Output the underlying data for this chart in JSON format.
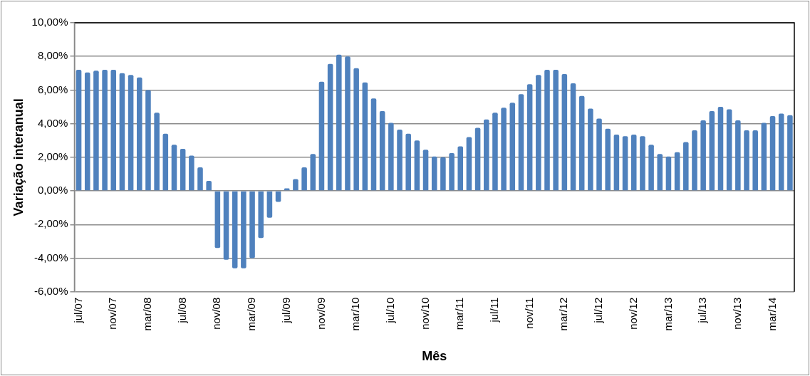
{
  "chart_data": {
    "type": "bar",
    "xlabel": "Mês",
    "ylabel": "Variação interanual",
    "categories": [
      "jul/07",
      null,
      null,
      null,
      "nov/07",
      null,
      null,
      null,
      "mar/08",
      null,
      null,
      null,
      "jul/08",
      null,
      null,
      null,
      "nov/08",
      null,
      null,
      null,
      "mar/09",
      null,
      null,
      null,
      "jul/09",
      null,
      null,
      null,
      "nov/09",
      null,
      null,
      null,
      "mar/10",
      null,
      null,
      null,
      "jul/10",
      null,
      null,
      null,
      "nov/10",
      null,
      null,
      null,
      "mar/11",
      null,
      null,
      null,
      "jul/11",
      null,
      null,
      null,
      "nov/11",
      null,
      null,
      null,
      "mar/12",
      null,
      null,
      null,
      "jul/12",
      null,
      null,
      null,
      "nov/12",
      null,
      null,
      null,
      "mar/13",
      null,
      null,
      null,
      "jul/13",
      null,
      null,
      null,
      "nov/13",
      null,
      null,
      null,
      "mar/14",
      null,
      null
    ],
    "values": [
      7.2,
      7.05,
      7.15,
      7.2,
      7.2,
      7.0,
      6.9,
      6.75,
      6.0,
      4.65,
      3.4,
      2.75,
      2.5,
      2.1,
      1.4,
      0.6,
      -3.4,
      -4.1,
      -4.6,
      -4.6,
      -4.0,
      -2.8,
      -1.6,
      -0.65,
      0.15,
      0.7,
      1.4,
      2.2,
      6.5,
      7.55,
      8.1,
      8.0,
      7.3,
      6.45,
      5.5,
      4.75,
      4.05,
      3.65,
      3.4,
      3.0,
      2.45,
      2.05,
      2.0,
      2.25,
      2.65,
      3.2,
      3.75,
      4.25,
      4.65,
      4.95,
      5.25,
      5.75,
      6.35,
      6.9,
      7.2,
      7.2,
      6.95,
      6.4,
      5.65,
      4.9,
      4.3,
      3.7,
      3.35,
      3.25,
      3.35,
      3.25,
      2.75,
      2.2,
      2.05,
      2.3,
      2.9,
      3.6,
      4.2,
      4.75,
      5.0,
      4.85,
      4.2,
      3.6,
      3.6,
      4.05,
      4.45,
      4.6,
      4.5
    ],
    "color": "#4f81bd",
    "ylim": [
      -6,
      10
    ],
    "yticks": [
      {
        "value": -6,
        "label": "-6,00%"
      },
      {
        "value": -4,
        "label": "-4,00%"
      },
      {
        "value": -2,
        "label": "-2,00%"
      },
      {
        "value": 0,
        "label": "0,00%"
      },
      {
        "value": 2,
        "label": "2,00%"
      },
      {
        "value": 4,
        "label": "4,00%"
      },
      {
        "value": 6,
        "label": "6,00%"
      },
      {
        "value": 8,
        "label": "8,00%"
      },
      {
        "value": 10,
        "label": "10,00%"
      }
    ],
    "grid": "y"
  }
}
